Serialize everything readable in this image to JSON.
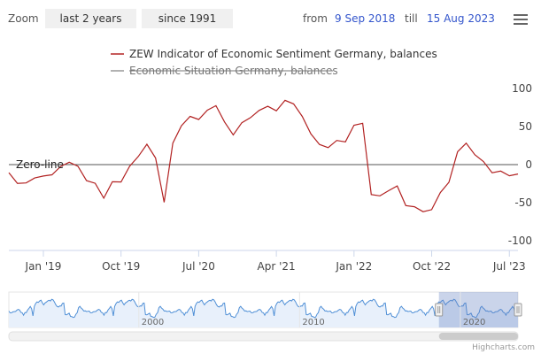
{
  "toolbar": {
    "zoom_label": "Zoom",
    "buttons": [
      "last 2 years",
      "since 1991"
    ],
    "from_label": "from",
    "from_value": "9 Sep 2018",
    "till_label": "till",
    "till_value": "15 Aug 2023",
    "menu_icon": "hamburger-menu-icon"
  },
  "credits": "Highcharts.com",
  "chart_data": {
    "type": "line",
    "title": "",
    "xlabel": "",
    "ylabel": "",
    "x_ticks": [
      "Jan '19",
      "Oct '19",
      "Jul '20",
      "Apr '21",
      "Jan '22",
      "Oct '22",
      "Jul '23"
    ],
    "y_ticks": [
      100,
      50,
      0,
      -50,
      -100
    ],
    "ylim": [
      -100,
      100
    ],
    "xlim": [
      "2018-09",
      "2023-08"
    ],
    "grid": false,
    "legend_position": "top",
    "plot_line": {
      "label": "Zero-line",
      "value": 0
    },
    "series": [
      {
        "name": "ZEW Indicator of Economic Sentiment Germany, balances",
        "color": "#b22222",
        "visible": true,
        "x": [
          "2018-09",
          "2018-10",
          "2018-11",
          "2018-12",
          "2019-01",
          "2019-02",
          "2019-03",
          "2019-04",
          "2019-05",
          "2019-06",
          "2019-07",
          "2019-08",
          "2019-09",
          "2019-10",
          "2019-11",
          "2019-12",
          "2020-01",
          "2020-02",
          "2020-03",
          "2020-04",
          "2020-05",
          "2020-06",
          "2020-07",
          "2020-08",
          "2020-09",
          "2020-10",
          "2020-11",
          "2020-12",
          "2021-01",
          "2021-02",
          "2021-03",
          "2021-04",
          "2021-05",
          "2021-06",
          "2021-07",
          "2021-08",
          "2021-09",
          "2021-10",
          "2021-11",
          "2021-12",
          "2022-01",
          "2022-02",
          "2022-03",
          "2022-04",
          "2022-05",
          "2022-06",
          "2022-07",
          "2022-08",
          "2022-09",
          "2022-10",
          "2022-11",
          "2022-12",
          "2023-01",
          "2023-02",
          "2023-03",
          "2023-04",
          "2023-05",
          "2023-06",
          "2023-07",
          "2023-08"
        ],
        "values": [
          -10.6,
          -24.7,
          -24.1,
          -17.5,
          -15.0,
          -13.4,
          -2.5,
          3.1,
          -2.1,
          -21.1,
          -24.5,
          -44.1,
          -22.5,
          -22.8,
          -2.1,
          10.7,
          26.7,
          8.7,
          -49.5,
          28.2,
          51.0,
          63.4,
          59.3,
          71.5,
          77.4,
          56.1,
          39.0,
          55.0,
          61.8,
          71.2,
          76.6,
          70.7,
          84.4,
          79.8,
          63.3,
          40.4,
          26.5,
          22.3,
          31.7,
          29.9,
          51.7,
          54.3,
          -39.3,
          -41.0,
          -34.3,
          -28.0,
          -53.8,
          -55.3,
          -61.9,
          -59.2,
          -36.7,
          -23.3,
          16.9,
          28.1,
          13.0,
          4.1,
          -10.7,
          -8.5,
          -14.7,
          -12.3
        ]
      },
      {
        "name": "Economic Situation Germany, balances",
        "color": "#999999",
        "visible": false,
        "values": []
      }
    ],
    "navigator": {
      "x_ticks": [
        "2000",
        "2010",
        "2020"
      ],
      "range": [
        "1991-12",
        "2023-08"
      ],
      "selected": [
        "2018-09",
        "2023-08"
      ]
    }
  }
}
